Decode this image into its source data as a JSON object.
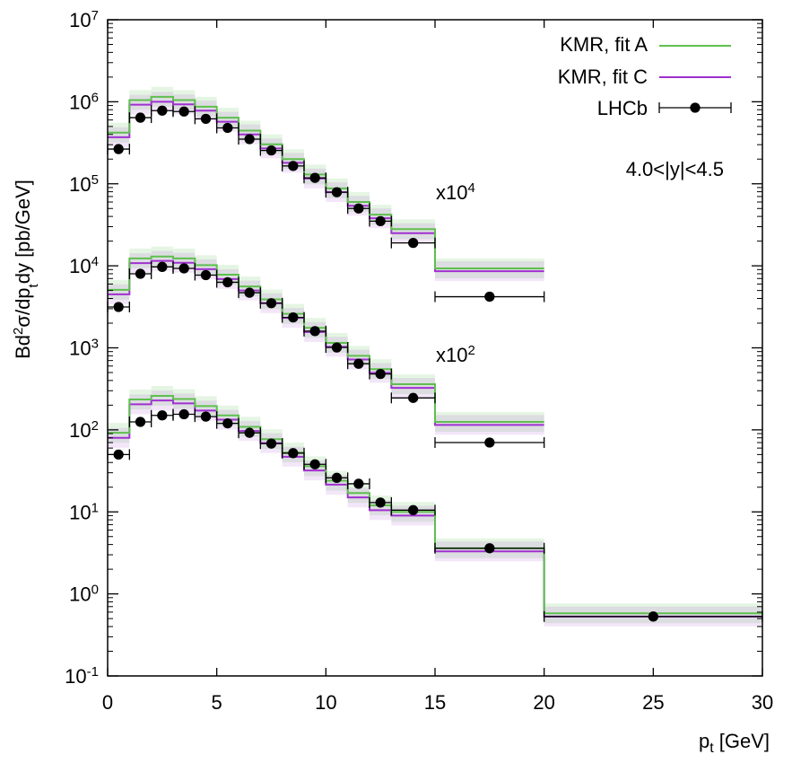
{
  "chart_data": {
    "type": "step-line+scatter",
    "title": "",
    "xlabel": {
      "main": "p",
      "sub": "t",
      "unit": " [GeV]"
    },
    "ylabel": {
      "p1": "Bd",
      "sup": "2",
      "p2": "σ/dp",
      "sub": "t",
      "p3": "dy [pb/GeV]"
    },
    "xlim": [
      0,
      30
    ],
    "ylim": [
      0.1,
      10000000
    ],
    "yscale": "log",
    "x_ticks": [
      {
        "value": 0,
        "label": "0"
      },
      {
        "value": 5,
        "label": "5"
      },
      {
        "value": 10,
        "label": "10"
      },
      {
        "value": 15,
        "label": "15"
      },
      {
        "value": 20,
        "label": "20"
      },
      {
        "value": 25,
        "label": "25"
      },
      {
        "value": 30,
        "label": "30"
      }
    ],
    "y_ticks": [
      {
        "value": 0.1,
        "base": "10",
        "exp": "-1"
      },
      {
        "value": 1,
        "base": "10",
        "exp": "0"
      },
      {
        "value": 10,
        "base": "10",
        "exp": "1"
      },
      {
        "value": 100,
        "base": "10",
        "exp": "2"
      },
      {
        "value": 1000,
        "base": "10",
        "exp": "3"
      },
      {
        "value": 10000,
        "base": "10",
        "exp": "4"
      },
      {
        "value": 100000,
        "base": "10",
        "exp": "5"
      },
      {
        "value": 1000000,
        "base": "10",
        "exp": "6"
      },
      {
        "value": 10000000,
        "base": "10",
        "exp": "7"
      }
    ],
    "legend": {
      "position": "top-right",
      "entries": [
        {
          "label": "KMR, fit A",
          "color": "#5fbf4f",
          "style": "line"
        },
        {
          "label": "KMR, fit C",
          "color": "#a030d0",
          "style": "line"
        },
        {
          "label": "LHCb",
          "color": "#000000",
          "style": "point-errorbar"
        }
      ]
    },
    "annotations": [
      {
        "text": "4.0<|y|<4.5",
        "position": "top-right"
      },
      {
        "text": "x10",
        "sup": "4",
        "near": "upper group"
      },
      {
        "text": "x10",
        "sup": "2",
        "near": "middle group"
      }
    ],
    "bin_edges": [
      0,
      1,
      2,
      3,
      4,
      5,
      6,
      7,
      8,
      9,
      10,
      11,
      12,
      13,
      15,
      20,
      30
    ],
    "series": [
      {
        "name": "group-x10^4",
        "scale": 10000,
        "nbins": 15,
        "fitA": [
          420000,
          1050000,
          1150000,
          1050000,
          870000,
          640000,
          445000,
          303000,
          200000,
          130000,
          88000,
          60000,
          42000,
          28000,
          9300
        ],
        "fitC": [
          370000,
          920000,
          1000000,
          930000,
          780000,
          570000,
          400000,
          270000,
          180000,
          116000,
          79000,
          54000,
          38000,
          25000,
          8600
        ],
        "data_x": [
          0.5,
          1.5,
          2.5,
          3.5,
          4.5,
          5.5,
          6.5,
          7.5,
          8.5,
          9.5,
          10.5,
          11.5,
          12.5,
          14,
          17.5
        ],
        "data_y": [
          265000,
          640000,
          780000,
          760000,
          620000,
          480000,
          350000,
          255000,
          165000,
          118000,
          79000,
          50000,
          35000,
          19000,
          4200
        ],
        "data_xerr": [
          0.5,
          0.5,
          0.5,
          0.5,
          0.5,
          0.5,
          0.5,
          0.5,
          0.5,
          0.5,
          0.5,
          0.5,
          0.5,
          1,
          2.5
        ]
      },
      {
        "name": "group-x10^2",
        "scale": 100,
        "nbins": 15,
        "fitA": [
          5100,
          12300,
          13000,
          12300,
          10200,
          7800,
          5600,
          3900,
          2600,
          1750,
          1150,
          800,
          550,
          360,
          125
        ],
        "fitC": [
          4500,
          10800,
          11500,
          10900,
          9100,
          6900,
          5000,
          3500,
          2320,
          1560,
          1030,
          720,
          495,
          325,
          115
        ],
        "data_x": [
          0.5,
          1.5,
          2.5,
          3.5,
          4.5,
          5.5,
          6.5,
          7.5,
          8.5,
          9.5,
          10.5,
          11.5,
          12.5,
          14,
          17.5
        ],
        "data_y": [
          3150,
          8000,
          9700,
          9300,
          7700,
          6300,
          4700,
          3500,
          2350,
          1600,
          1010,
          640,
          480,
          245,
          70
        ],
        "data_xerr": [
          0.5,
          0.5,
          0.5,
          0.5,
          0.5,
          0.5,
          0.5,
          0.5,
          0.5,
          0.5,
          0.5,
          0.5,
          0.5,
          1,
          2.5
        ]
      },
      {
        "name": "group-x1",
        "scale": 1,
        "nbins": 16,
        "fitA": [
          92,
          235,
          260,
          238,
          195,
          150,
          109,
          77,
          53,
          36,
          24,
          17,
          12,
          10,
          3.6,
          0.58
        ],
        "fitC": [
          80,
          205,
          228,
          210,
          172,
          133,
          97,
          69,
          47,
          32,
          21.5,
          15,
          10.5,
          9,
          3.3,
          0.53
        ],
        "data_x": [
          0.5,
          1.5,
          2.5,
          3.5,
          4.5,
          5.5,
          6.5,
          7.5,
          8.5,
          9.5,
          10.5,
          11.5,
          12.5,
          14,
          17.5,
          25
        ],
        "data_y": [
          50,
          125,
          150,
          155,
          145,
          120,
          92,
          68,
          52,
          38,
          26,
          22,
          13,
          10.5,
          3.6,
          0.53
        ],
        "data_xerr": [
          0.5,
          0.5,
          0.5,
          0.5,
          0.5,
          0.5,
          0.5,
          0.5,
          0.5,
          0.5,
          0.5,
          0.5,
          0.5,
          1,
          2.5,
          5
        ]
      }
    ]
  }
}
